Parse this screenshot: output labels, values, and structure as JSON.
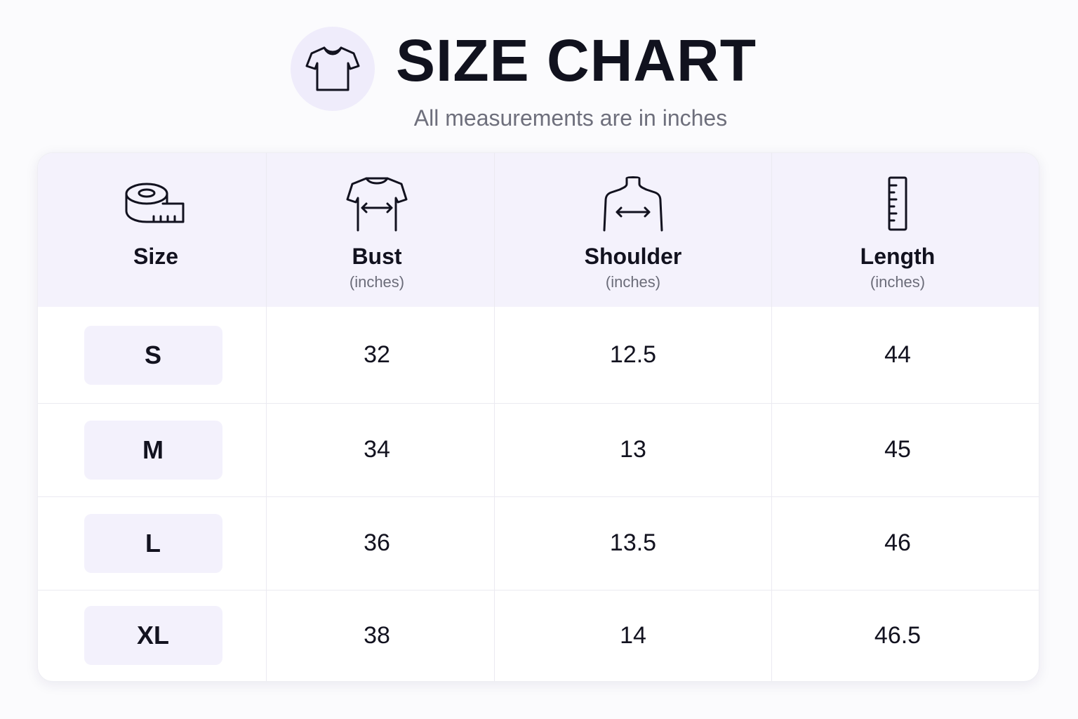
{
  "header": {
    "title": "SIZE CHART",
    "subtitle": "All measurements are in inches",
    "icon": "tshirt-icon"
  },
  "table": {
    "columns": [
      {
        "label": "Size",
        "unit": "",
        "icon": "measuring-tape-icon"
      },
      {
        "label": "Bust",
        "unit": "(inches)",
        "icon": "bust-measure-icon"
      },
      {
        "label": "Shoulder",
        "unit": "(inches)",
        "icon": "shoulder-measure-icon"
      },
      {
        "label": "Length",
        "unit": "(inches)",
        "icon": "ruler-icon"
      }
    ],
    "rows": [
      {
        "size": "S",
        "bust": "32",
        "shoulder": "12.5",
        "length": "44"
      },
      {
        "size": "M",
        "bust": "34",
        "shoulder": "13",
        "length": "45"
      },
      {
        "size": "L",
        "bust": "36",
        "shoulder": "13.5",
        "length": "46"
      },
      {
        "size": "XL",
        "bust": "38",
        "shoulder": "14",
        "length": "46.5"
      }
    ]
  },
  "colors": {
    "accent_light": "#f4f2fc",
    "badge": "#f3f1fc",
    "text": "#12121f",
    "muted": "#6e6f7c"
  }
}
